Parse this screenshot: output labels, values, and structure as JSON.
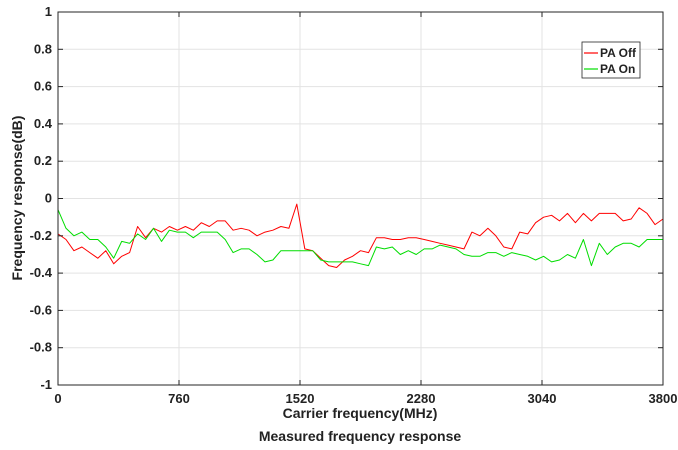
{
  "chart_data": {
    "type": "line",
    "xlabel": "Carrier frequency(MHz)",
    "ylabel": "Frequency response(dB)",
    "caption": "Measured frequency response",
    "xlim": [
      0,
      3800
    ],
    "ylim": [
      -1,
      1
    ],
    "xticks": [
      0,
      760,
      1520,
      2280,
      3040,
      3800
    ],
    "xtick_labels": [
      "0",
      "760",
      "1520",
      "2280",
      "3040",
      "3800"
    ],
    "yticks": [
      -1,
      -0.8,
      -0.6,
      -0.4,
      -0.2,
      0,
      0.2,
      0.4,
      0.6,
      0.8,
      1
    ],
    "ytick_labels": [
      "-1",
      "-0.8",
      "-0.6",
      "-0.4",
      "-0.2",
      "0",
      "0.2",
      "0.4",
      "0.6",
      "0.8",
      "1"
    ],
    "grid": true,
    "legend_position": "top-right",
    "series": [
      {
        "name": "PA Off",
        "color": "#ff0000",
        "x": [
          0,
          50,
          100,
          150,
          200,
          250,
          300,
          350,
          400,
          450,
          500,
          550,
          600,
          650,
          700,
          750,
          800,
          850,
          900,
          950,
          1000,
          1050,
          1100,
          1150,
          1200,
          1250,
          1300,
          1350,
          1400,
          1450,
          1500,
          1550,
          1600,
          1650,
          1700,
          1750,
          1800,
          1850,
          1900,
          1950,
          2000,
          2050,
          2100,
          2150,
          2200,
          2250,
          2300,
          2350,
          2400,
          2450,
          2500,
          2550,
          2600,
          2650,
          2700,
          2750,
          2800,
          2850,
          2900,
          2950,
          3000,
          3050,
          3100,
          3150,
          3200,
          3250,
          3300,
          3350,
          3400,
          3450,
          3500,
          3550,
          3600,
          3650,
          3700,
          3750,
          3800
        ],
        "values": [
          -0.19,
          -0.22,
          -0.28,
          -0.26,
          -0.29,
          -0.32,
          -0.28,
          -0.35,
          -0.31,
          -0.29,
          -0.15,
          -0.21,
          -0.16,
          -0.18,
          -0.15,
          -0.17,
          -0.15,
          -0.17,
          -0.13,
          -0.15,
          -0.12,
          -0.12,
          -0.17,
          -0.16,
          -0.17,
          -0.2,
          -0.18,
          -0.17,
          -0.15,
          -0.16,
          -0.03,
          -0.27,
          -0.28,
          -0.32,
          -0.36,
          -0.37,
          -0.33,
          -0.31,
          -0.28,
          -0.29,
          -0.21,
          -0.21,
          -0.22,
          -0.22,
          -0.21,
          -0.21,
          -0.22,
          -0.23,
          -0.24,
          -0.25,
          -0.26,
          -0.27,
          -0.18,
          -0.2,
          -0.16,
          -0.2,
          -0.26,
          -0.27,
          -0.18,
          -0.19,
          -0.13,
          -0.1,
          -0.09,
          -0.12,
          -0.08,
          -0.13,
          -0.08,
          -0.12,
          -0.08,
          -0.08,
          -0.08,
          -0.12,
          -0.11,
          -0.05,
          -0.08,
          -0.14,
          -0.11
        ]
      },
      {
        "name": "PA On",
        "color": "#00dd00",
        "x": [
          0,
          50,
          100,
          150,
          200,
          250,
          300,
          350,
          400,
          450,
          500,
          550,
          600,
          650,
          700,
          750,
          800,
          850,
          900,
          950,
          1000,
          1050,
          1100,
          1150,
          1200,
          1250,
          1300,
          1350,
          1400,
          1450,
          1500,
          1550,
          1600,
          1650,
          1700,
          1750,
          1800,
          1850,
          1900,
          1950,
          2000,
          2050,
          2100,
          2150,
          2200,
          2250,
          2300,
          2350,
          2400,
          2450,
          2500,
          2550,
          2600,
          2650,
          2700,
          2750,
          2800,
          2850,
          2900,
          2950,
          3000,
          3050,
          3100,
          3150,
          3200,
          3250,
          3300,
          3350,
          3400,
          3450,
          3500,
          3550,
          3600,
          3650,
          3700,
          3750,
          3800
        ],
        "values": [
          -0.06,
          -0.16,
          -0.2,
          -0.18,
          -0.22,
          -0.22,
          -0.26,
          -0.32,
          -0.23,
          -0.24,
          -0.19,
          -0.22,
          -0.16,
          -0.23,
          -0.17,
          -0.18,
          -0.18,
          -0.21,
          -0.18,
          -0.18,
          -0.18,
          -0.22,
          -0.29,
          -0.27,
          -0.27,
          -0.3,
          -0.34,
          -0.33,
          -0.28,
          -0.28,
          -0.28,
          -0.28,
          -0.28,
          -0.33,
          -0.34,
          -0.34,
          -0.34,
          -0.34,
          -0.35,
          -0.36,
          -0.26,
          -0.27,
          -0.26,
          -0.3,
          -0.28,
          -0.3,
          -0.27,
          -0.27,
          -0.25,
          -0.26,
          -0.27,
          -0.3,
          -0.31,
          -0.31,
          -0.29,
          -0.29,
          -0.31,
          -0.29,
          -0.3,
          -0.31,
          -0.33,
          -0.31,
          -0.34,
          -0.33,
          -0.3,
          -0.32,
          -0.22,
          -0.36,
          -0.24,
          -0.3,
          -0.26,
          -0.24,
          -0.24,
          -0.26,
          -0.22,
          -0.22,
          -0.22
        ]
      }
    ]
  }
}
